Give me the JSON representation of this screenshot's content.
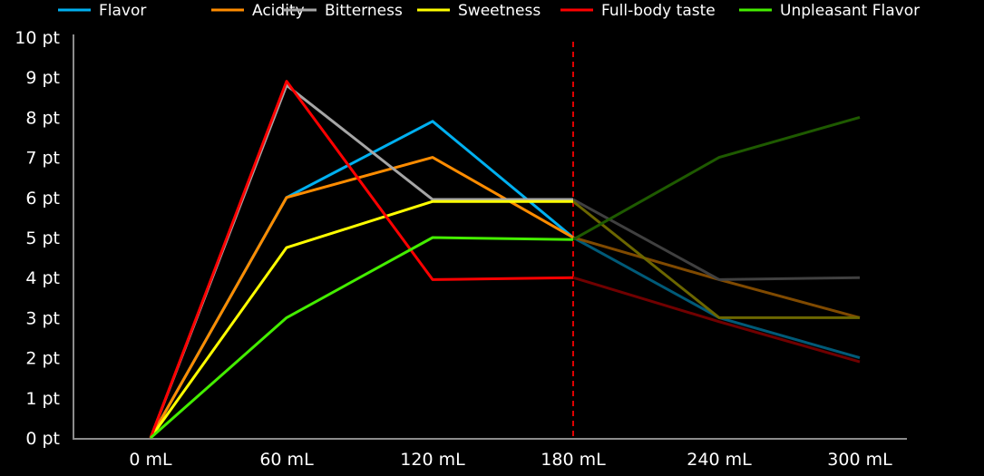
{
  "chart_data": {
    "type": "line",
    "title": "",
    "xlabel": "",
    "ylabel": "",
    "categories": [
      "0 mL",
      "60 mL",
      "120 mL",
      "180 mL",
      "240 mL",
      "300 mL"
    ],
    "y_tick_labels": [
      "0 pt",
      "1 pt",
      "2 pt",
      "3 pt",
      "4 pt",
      "5 pt",
      "6 pt",
      "7 pt",
      "8 pt",
      "9 pt",
      "10 pt"
    ],
    "ylim": [
      0,
      10
    ],
    "grid": false,
    "legend_position": "top",
    "background": "#000000",
    "reference_line": {
      "at": "180 mL",
      "style": "dashed",
      "color": "#e00000"
    },
    "after_reference_dimmed": true,
    "series": [
      {
        "name": "Flavor",
        "color": "#00b0f0",
        "dim_color": "#005a78",
        "values": [
          0,
          6,
          7.9,
          5,
          3,
          2
        ]
      },
      {
        "name": "Acidity",
        "color": "#ff8c00",
        "dim_color": "#804a00",
        "values": [
          0,
          6,
          7,
          5,
          3.95,
          3
        ]
      },
      {
        "name": "Bitterness",
        "color": "#a6a6a6",
        "dim_color": "#404040",
        "values": [
          0,
          8.8,
          5.95,
          5.95,
          3.95,
          4
        ]
      },
      {
        "name": "Sweetness",
        "color": "#ffff00",
        "dim_color": "#6b6600",
        "values": [
          0,
          4.75,
          5.9,
          5.9,
          3,
          3
        ]
      },
      {
        "name": "Full-body taste",
        "color": "#ff0000",
        "dim_color": "#700000",
        "values": [
          0,
          8.9,
          3.95,
          4,
          2.9,
          1.9
        ]
      },
      {
        "name": "Unpleasant Flavor",
        "color": "#44ee00",
        "dim_color": "#1e5a00",
        "values": [
          0,
          3,
          5,
          4.95,
          7,
          8
        ]
      }
    ]
  }
}
